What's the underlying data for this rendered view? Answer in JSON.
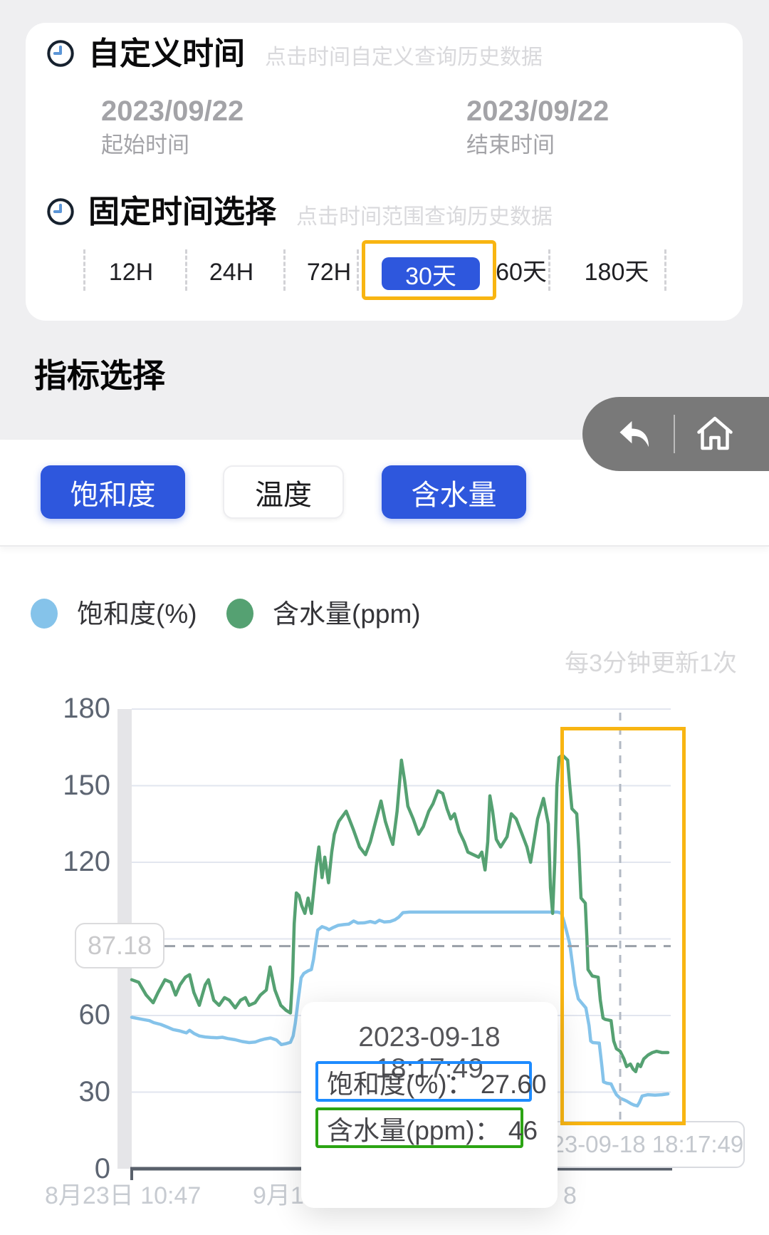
{
  "custom_time": {
    "title": "自定义时间",
    "hint": "点击时间自定义查询历史数据",
    "start_date": "2023/09/22",
    "start_label": "起始时间",
    "end_date": "2023/09/22",
    "end_label": "结束时间"
  },
  "fixed_time": {
    "title": "固定时间选择",
    "hint": "点击时间范围查询历史数据",
    "options": [
      {
        "label": "12H",
        "selected": false
      },
      {
        "label": "24H",
        "selected": false
      },
      {
        "label": "72H",
        "selected": false
      },
      {
        "label": "30天",
        "selected": true
      },
      {
        "label": "60天",
        "selected": false
      },
      {
        "label": "180天",
        "selected": false
      }
    ],
    "highlight_color": "#f8b512"
  },
  "indicator": {
    "heading": "指标选择",
    "buttons": [
      {
        "label": "饱和度",
        "active": true
      },
      {
        "label": "温度",
        "active": false
      },
      {
        "label": "含水量",
        "active": true
      }
    ],
    "active_color": "#2e57dd"
  },
  "nav": {
    "back_icon": "back-arrow",
    "home_icon": "home"
  },
  "legend": [
    {
      "label": "饱和度(%)",
      "color": "#85c3ea"
    },
    {
      "label": "含水量(ppm)",
      "color": "#55a172"
    }
  ],
  "chart_data": {
    "type": "line",
    "update_note": "每3分钟更新1次",
    "y_axis": {
      "min": 0,
      "max": 180,
      "interval": 30,
      "hidden_tick_label": 90
    },
    "y_tick_labels": [
      "180",
      "150",
      "120",
      "60",
      "30",
      "0"
    ],
    "x_axis_labels": [
      "8月23日 10:47",
      "9月1日",
      "8"
    ],
    "grid": true,
    "reference_line": {
      "value": 87.18,
      "label": "87.18"
    },
    "axis_pointer": {
      "label": "2023-09-18 18:17:49",
      "x_value": "2023-09-18 18:17:49"
    },
    "series": [
      {
        "name": "饱和度(%)",
        "color": "#85c3ea",
        "points": [
          [
            0,
            59.3
          ],
          [
            0.02,
            58.5
          ],
          [
            0.033,
            58
          ],
          [
            0.041,
            57.2
          ],
          [
            0.054,
            56.5
          ],
          [
            0.066,
            55.5
          ],
          [
            0.077,
            54.5
          ],
          [
            0.089,
            54
          ],
          [
            0.102,
            53.2
          ],
          [
            0.108,
            54.2
          ],
          [
            0.116,
            53
          ],
          [
            0.126,
            52
          ],
          [
            0.137,
            51.6
          ],
          [
            0.147,
            51.4
          ],
          [
            0.159,
            51.3
          ],
          [
            0.169,
            51.5
          ],
          [
            0.179,
            51
          ],
          [
            0.193,
            50.5
          ],
          [
            0.206,
            49.8
          ],
          [
            0.219,
            49.4
          ],
          [
            0.23,
            49.6
          ],
          [
            0.239,
            50.3
          ],
          [
            0.248,
            50.8
          ],
          [
            0.259,
            51.2
          ],
          [
            0.27,
            50.4
          ],
          [
            0.279,
            48.6
          ],
          [
            0.288,
            49
          ],
          [
            0.296,
            49.5
          ],
          [
            0.301,
            52
          ],
          [
            0.305,
            57
          ],
          [
            0.311,
            67
          ],
          [
            0.316,
            74.8
          ],
          [
            0.321,
            76.5
          ],
          [
            0.329,
            77.5
          ],
          [
            0.335,
            78
          ],
          [
            0.339,
            82
          ],
          [
            0.343,
            88
          ],
          [
            0.347,
            93.5
          ],
          [
            0.355,
            94.8
          ],
          [
            0.363,
            94.2
          ],
          [
            0.368,
            93.6
          ],
          [
            0.376,
            94.5
          ],
          [
            0.385,
            95.3
          ],
          [
            0.396,
            95.6
          ],
          [
            0.405,
            95.8
          ],
          [
            0.414,
            97
          ],
          [
            0.422,
            96.2
          ],
          [
            0.434,
            96.3
          ],
          [
            0.445,
            96.8
          ],
          [
            0.454,
            96.3
          ],
          [
            0.462,
            97.3
          ],
          [
            0.471,
            96.6
          ],
          [
            0.482,
            96.8
          ],
          [
            0.491,
            97.5
          ],
          [
            0.498,
            98.5
          ],
          [
            0.506,
            100.3
          ],
          [
            0.518,
            100.5
          ],
          [
            0.604,
            100.5
          ],
          [
            0.71,
            100.5
          ],
          [
            0.794,
            100.5
          ],
          [
            0.801,
            100.2
          ],
          [
            0.806,
            97
          ],
          [
            0.811,
            93
          ],
          [
            0.817,
            88
          ],
          [
            0.822,
            80
          ],
          [
            0.827,
            72
          ],
          [
            0.833,
            66.5
          ],
          [
            0.841,
            64.5
          ],
          [
            0.847,
            63
          ],
          [
            0.853,
            56
          ],
          [
            0.856,
            50
          ],
          [
            0.86,
            49.4
          ],
          [
            0.872,
            49.2
          ],
          [
            0.877,
            40
          ],
          [
            0.88,
            34
          ],
          [
            0.886,
            33.5
          ],
          [
            0.894,
            33.2
          ],
          [
            0.899,
            31
          ],
          [
            0.904,
            29
          ],
          [
            0.911,
            27.6
          ],
          [
            0.918,
            27
          ],
          [
            0.923,
            26.5
          ],
          [
            0.931,
            25.5
          ],
          [
            0.936,
            25
          ],
          [
            0.943,
            24.6
          ],
          [
            0.947,
            26
          ],
          [
            0.952,
            28.5
          ],
          [
            0.963,
            29
          ],
          [
            0.976,
            28.8
          ],
          [
            0.989,
            29
          ],
          [
            1,
            29.3
          ]
        ]
      },
      {
        "name": "含水量(ppm)",
        "color": "#55a172",
        "points": [
          [
            0,
            74
          ],
          [
            0.013,
            73
          ],
          [
            0.027,
            68
          ],
          [
            0.04,
            65
          ],
          [
            0.049,
            69
          ],
          [
            0.062,
            74
          ],
          [
            0.073,
            73
          ],
          [
            0.082,
            68
          ],
          [
            0.09,
            72
          ],
          [
            0.1,
            75
          ],
          [
            0.108,
            76
          ],
          [
            0.116,
            69
          ],
          [
            0.126,
            64
          ],
          [
            0.137,
            72
          ],
          [
            0.143,
            74
          ],
          [
            0.153,
            66
          ],
          [
            0.163,
            64
          ],
          [
            0.173,
            67
          ],
          [
            0.182,
            66
          ],
          [
            0.193,
            63
          ],
          [
            0.203,
            66
          ],
          [
            0.212,
            67
          ],
          [
            0.219,
            64
          ],
          [
            0.23,
            65
          ],
          [
            0.24,
            68
          ],
          [
            0.251,
            70
          ],
          [
            0.258,
            79
          ],
          [
            0.267,
            70
          ],
          [
            0.278,
            64
          ],
          [
            0.288,
            62
          ],
          [
            0.296,
            61
          ],
          [
            0.3,
            75
          ],
          [
            0.303,
            96
          ],
          [
            0.307,
            108
          ],
          [
            0.312,
            107
          ],
          [
            0.317,
            103
          ],
          [
            0.323,
            100
          ],
          [
            0.329,
            106
          ],
          [
            0.335,
            100
          ],
          [
            0.34,
            110
          ],
          [
            0.344,
            118
          ],
          [
            0.349,
            126
          ],
          [
            0.355,
            114
          ],
          [
            0.36,
            122
          ],
          [
            0.367,
            112
          ],
          [
            0.373,
            124
          ],
          [
            0.378,
            131
          ],
          [
            0.386,
            136
          ],
          [
            0.4,
            140
          ],
          [
            0.413,
            133
          ],
          [
            0.425,
            126
          ],
          [
            0.436,
            123
          ],
          [
            0.445,
            128
          ],
          [
            0.455,
            136
          ],
          [
            0.465,
            144
          ],
          [
            0.473,
            136
          ],
          [
            0.482,
            130
          ],
          [
            0.487,
            127
          ],
          [
            0.495,
            140
          ],
          [
            0.503,
            160
          ],
          [
            0.509,
            152
          ],
          [
            0.515,
            142
          ],
          [
            0.525,
            137
          ],
          [
            0.535,
            131
          ],
          [
            0.544,
            134
          ],
          [
            0.554,
            140
          ],
          [
            0.562,
            143
          ],
          [
            0.571,
            148
          ],
          [
            0.58,
            147
          ],
          [
            0.588,
            141
          ],
          [
            0.595,
            137
          ],
          [
            0.602,
            139
          ],
          [
            0.611,
            132
          ],
          [
            0.62,
            128
          ],
          [
            0.627,
            124
          ],
          [
            0.637,
            123
          ],
          [
            0.647,
            122
          ],
          [
            0.653,
            124
          ],
          [
            0.659,
            117
          ],
          [
            0.664,
            128
          ],
          [
            0.668,
            146
          ],
          [
            0.673,
            140
          ],
          [
            0.68,
            129
          ],
          [
            0.688,
            126
          ],
          [
            0.7,
            130
          ],
          [
            0.708,
            139
          ],
          [
            0.717,
            137
          ],
          [
            0.728,
            131
          ],
          [
            0.737,
            126
          ],
          [
            0.744,
            120
          ],
          [
            0.75,
            128
          ],
          [
            0.757,
            137
          ],
          [
            0.768,
            145
          ],
          [
            0.777,
            135
          ],
          [
            0.781,
            110
          ],
          [
            0.785,
            100
          ],
          [
            0.789,
            120
          ],
          [
            0.793,
            150
          ],
          [
            0.797,
            161
          ],
          [
            0.803,
            162
          ],
          [
            0.813,
            160
          ],
          [
            0.817,
            150
          ],
          [
            0.821,
            141
          ],
          [
            0.83,
            139
          ],
          [
            0.834,
            125
          ],
          [
            0.838,
            106
          ],
          [
            0.846,
            104
          ],
          [
            0.849,
            90
          ],
          [
            0.851,
            78
          ],
          [
            0.859,
            75.5
          ],
          [
            0.87,
            75
          ],
          [
            0.874,
            66
          ],
          [
            0.879,
            59
          ],
          [
            0.883,
            58.5
          ],
          [
            0.894,
            58
          ],
          [
            0.899,
            50
          ],
          [
            0.904,
            47
          ],
          [
            0.911,
            46
          ],
          [
            0.918,
            43
          ],
          [
            0.923,
            40
          ],
          [
            0.93,
            41
          ],
          [
            0.935,
            39
          ],
          [
            0.94,
            38
          ],
          [
            0.944,
            41
          ],
          [
            0.949,
            40
          ],
          [
            0.955,
            43
          ],
          [
            0.963,
            44.5
          ],
          [
            0.971,
            45.5
          ],
          [
            0.979,
            46
          ],
          [
            0.989,
            45.5
          ],
          [
            1,
            45.5
          ]
        ]
      }
    ],
    "tooltip": {
      "date": "2023-09-18 18:17:49",
      "rows": [
        {
          "text": "饱和度(%)： 27.60",
          "border_color": "#1d8bff"
        },
        {
          "text": "含水量(ppm)： 46",
          "border_color": "#2ba413"
        }
      ]
    }
  },
  "colors": {
    "accent_blue": "#2e57dd",
    "highlight_orange": "#f8b512",
    "line_blue": "#85c3ea",
    "line_green": "#55a172",
    "page_gray": "#efeff1"
  }
}
